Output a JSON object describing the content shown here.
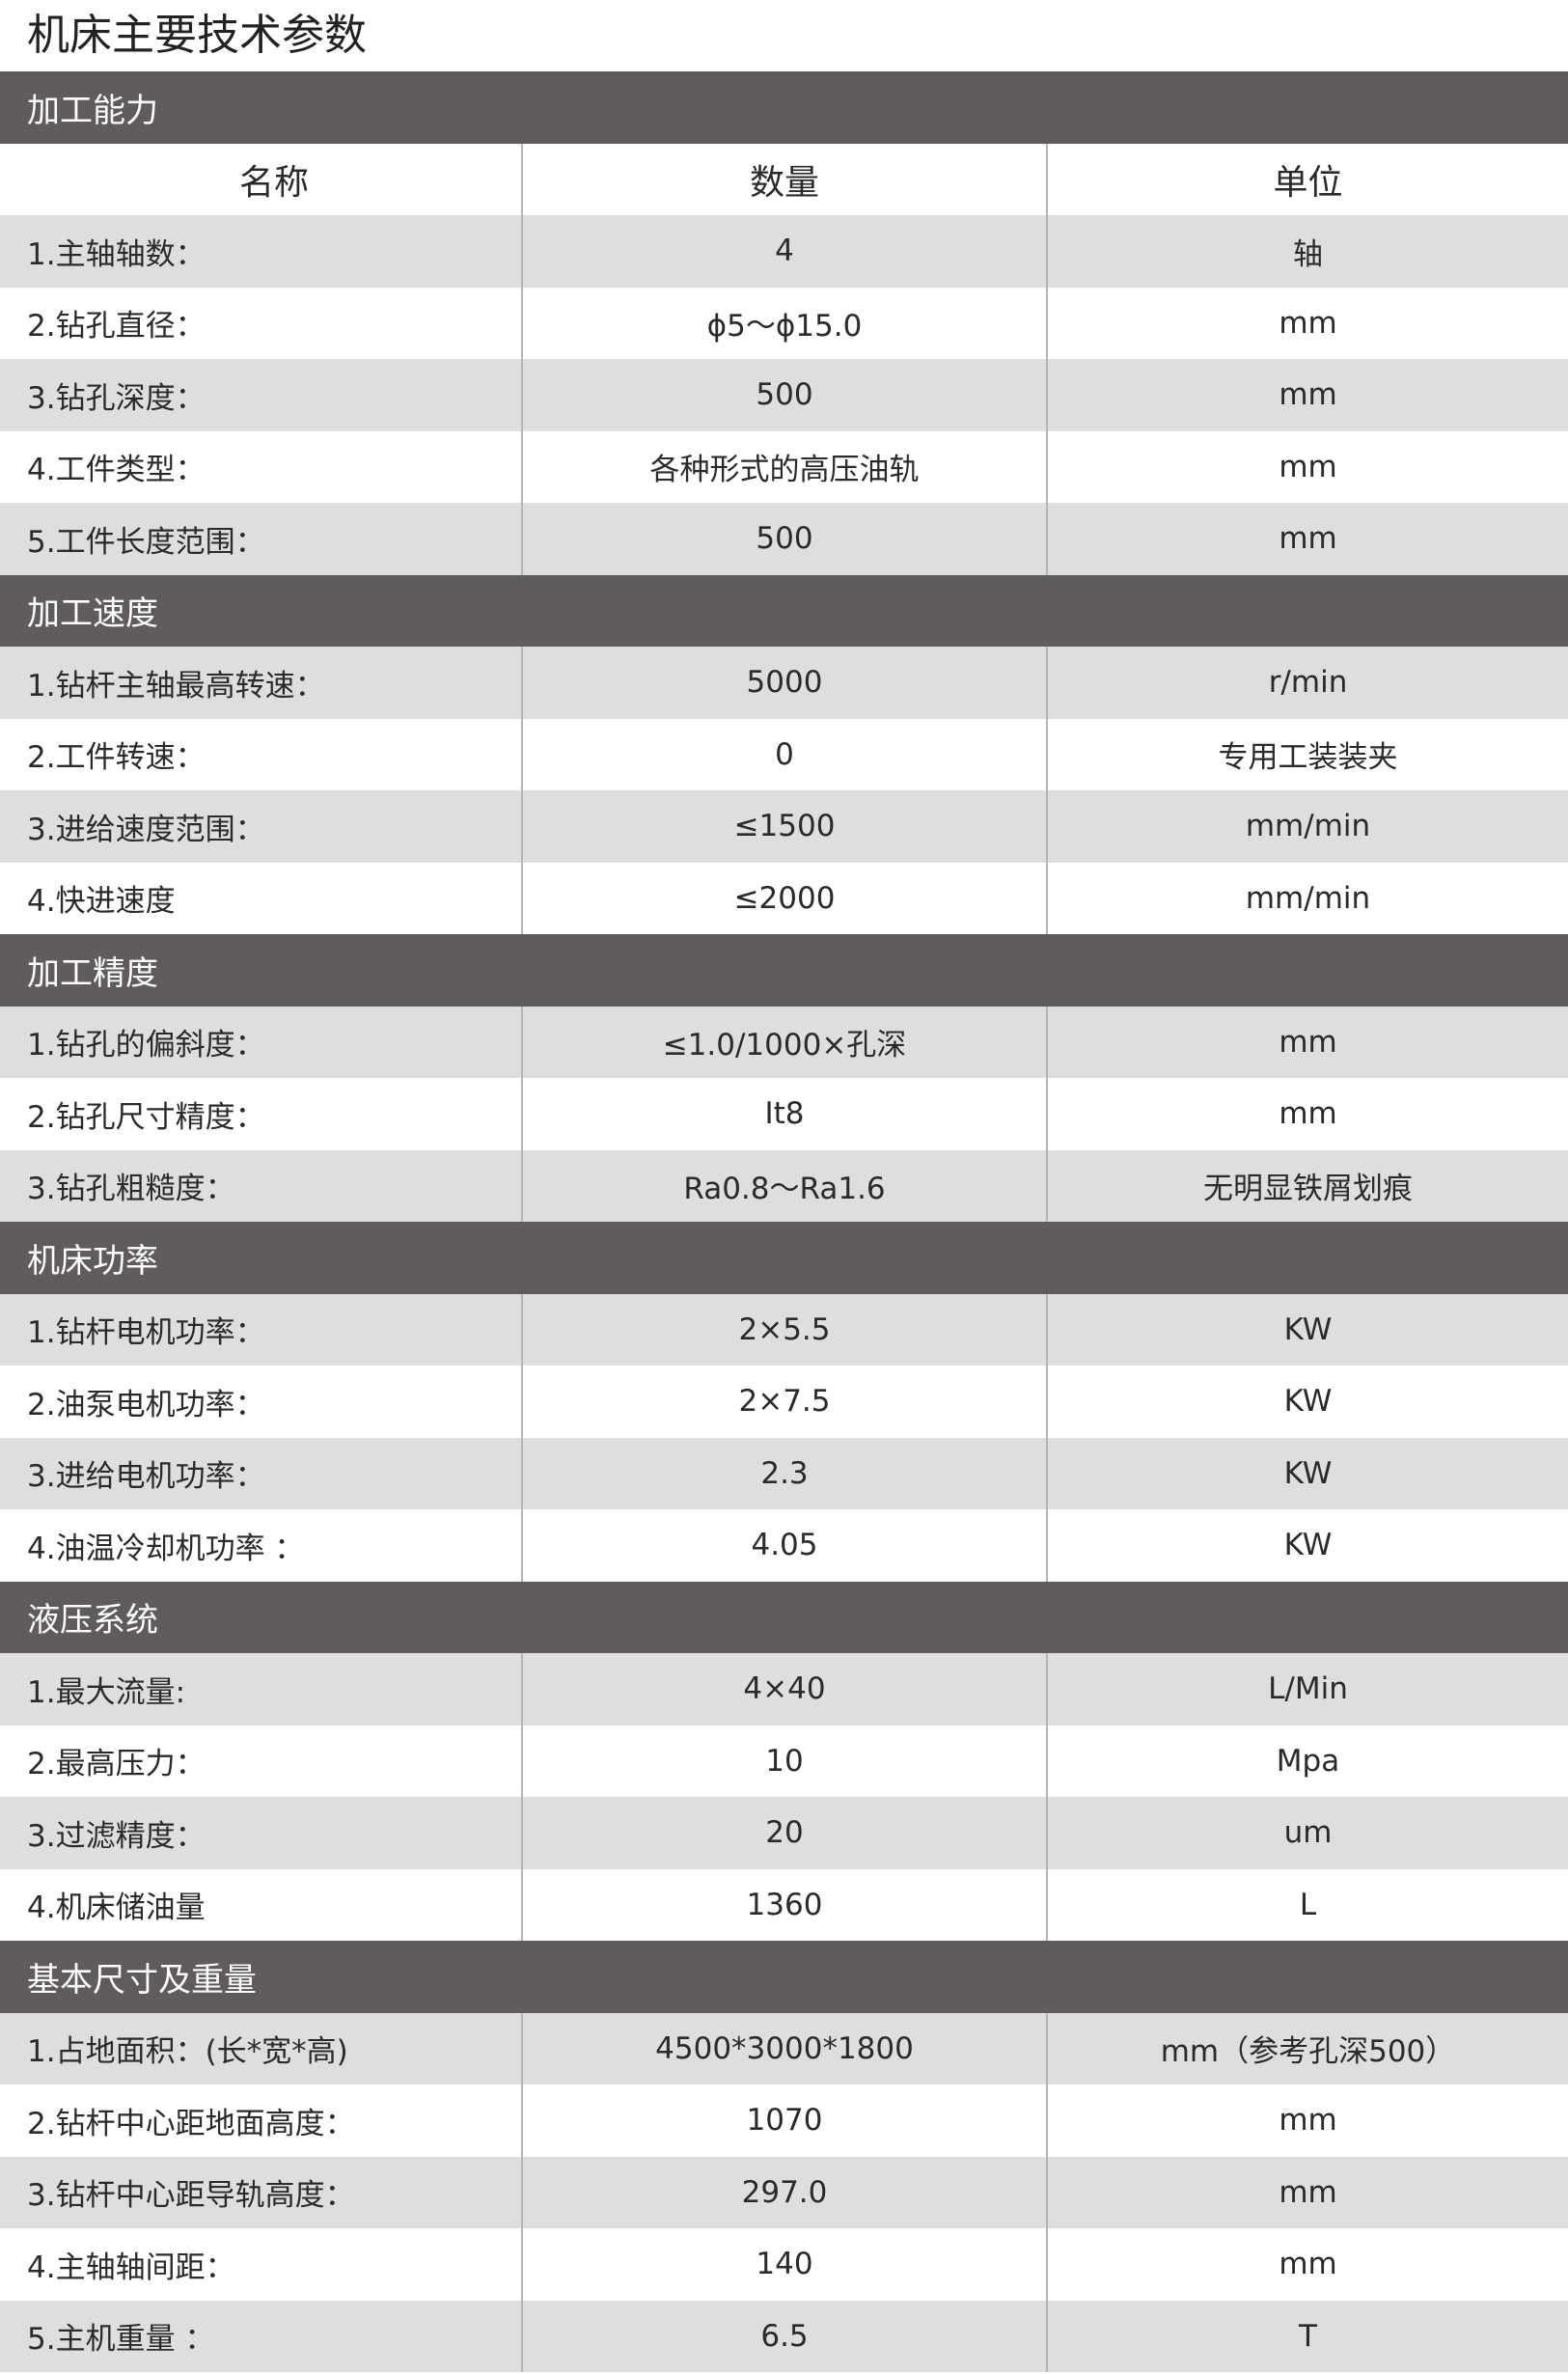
{
  "title": "机床主要技术参数",
  "columns": [
    "名称",
    "数量",
    "单位"
  ],
  "sections": [
    {
      "title": "加工能力",
      "rows": [
        [
          "1.主轴轴数：",
          "4",
          "轴"
        ],
        [
          "2.钻孔直径：",
          "ϕ5～ϕ15.0",
          "mm"
        ],
        [
          "3.钻孔深度：",
          "500",
          "mm"
        ],
        [
          "4.工件类型：",
          "各种形式的高压油轨",
          "mm"
        ],
        [
          "5.工件长度范围：",
          "500",
          "mm"
        ]
      ]
    },
    {
      "title": "加工速度",
      "rows": [
        [
          "1.钻杆主轴最高转速：",
          "5000",
          "r/min"
        ],
        [
          "2.工件转速：",
          "0",
          "专用工装装夹"
        ],
        [
          "3.进给速度范围：",
          "≤1500",
          "mm/min"
        ],
        [
          "4.快进速度",
          "≤2000",
          "mm/min"
        ]
      ]
    },
    {
      "title": "加工精度",
      "rows": [
        [
          "1.钻孔的偏斜度：",
          "≤1.0/1000×孔深",
          "mm"
        ],
        [
          "2.钻孔尺寸精度：",
          "It8",
          "mm"
        ],
        [
          "3.钻孔粗糙度：",
          "Ra0.8～Ra1.6",
          "无明显铁屑划痕"
        ]
      ]
    },
    {
      "title": "机床功率",
      "rows": [
        [
          "1.钻杆电机功率：",
          "2×5.5",
          "KW"
        ],
        [
          "2.油泵电机功率：",
          "2×7.5",
          "KW"
        ],
        [
          "3.进给电机功率：",
          "2.3",
          "KW"
        ],
        [
          "4.油温冷却机功率 ：",
          "4.05",
          "KW"
        ]
      ]
    },
    {
      "title": "液压系统",
      "rows": [
        [
          "1.最大流量:",
          "4×40",
          "L/Min"
        ],
        [
          "2.最高压力：",
          "10",
          "Mpa"
        ],
        [
          "3.过滤精度：",
          "20",
          "um"
        ],
        [
          "4.机床储油量",
          "1360",
          "L"
        ]
      ]
    },
    {
      "title": "基本尺寸及重量",
      "rows": [
        [
          "1.占地面积：(长*宽*高)",
          "4500*3000*1800",
          "mm（参考孔深500）"
        ],
        [
          "2.钻杆中心距地面高度：",
          "1070",
          "mm"
        ],
        [
          "3.钻杆中心距导轨高度：",
          "297.0",
          "mm"
        ],
        [
          "4.主轴轴间距：",
          "140",
          "mm"
        ],
        [
          "5.主机重量 ：",
          "6.5",
          "T"
        ]
      ]
    }
  ]
}
